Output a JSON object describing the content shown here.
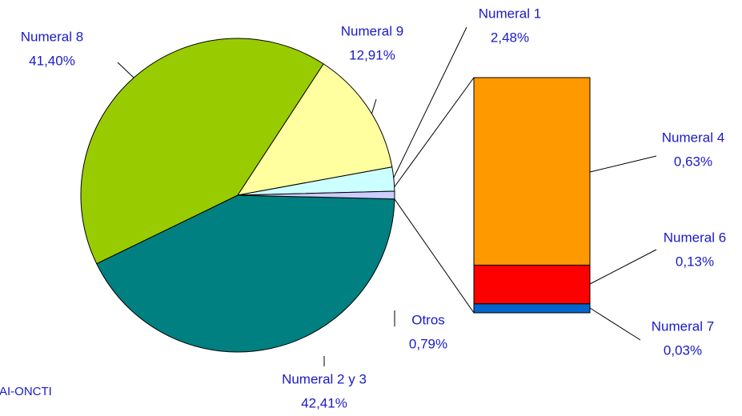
{
  "chart_data": {
    "type": "pie",
    "categories": [
      "Numeral 2 y 3",
      "Numeral 8",
      "Numeral 9",
      "Numeral 1",
      "Otros"
    ],
    "values": [
      42.41,
      41.4,
      12.91,
      2.48,
      0.79
    ],
    "value_labels": [
      "42,41%",
      "41,40%",
      "12,91%",
      "2,48%",
      "0,79%"
    ],
    "colors": [
      "#008080",
      "#99cc00",
      "#ffffa0",
      "#ccffff",
      "#ccccff"
    ],
    "bar": {
      "categories": [
        "Numeral 4",
        "Numeral 6",
        "Numeral 7"
      ],
      "values": [
        0.63,
        0.13,
        0.03
      ],
      "value_labels": [
        "0,63%",
        "0,13%",
        "0,03%"
      ],
      "colors": [
        "#ff9900",
        "#ff0000",
        "#0066cc"
      ]
    },
    "source": "AI-ONCTI"
  }
}
